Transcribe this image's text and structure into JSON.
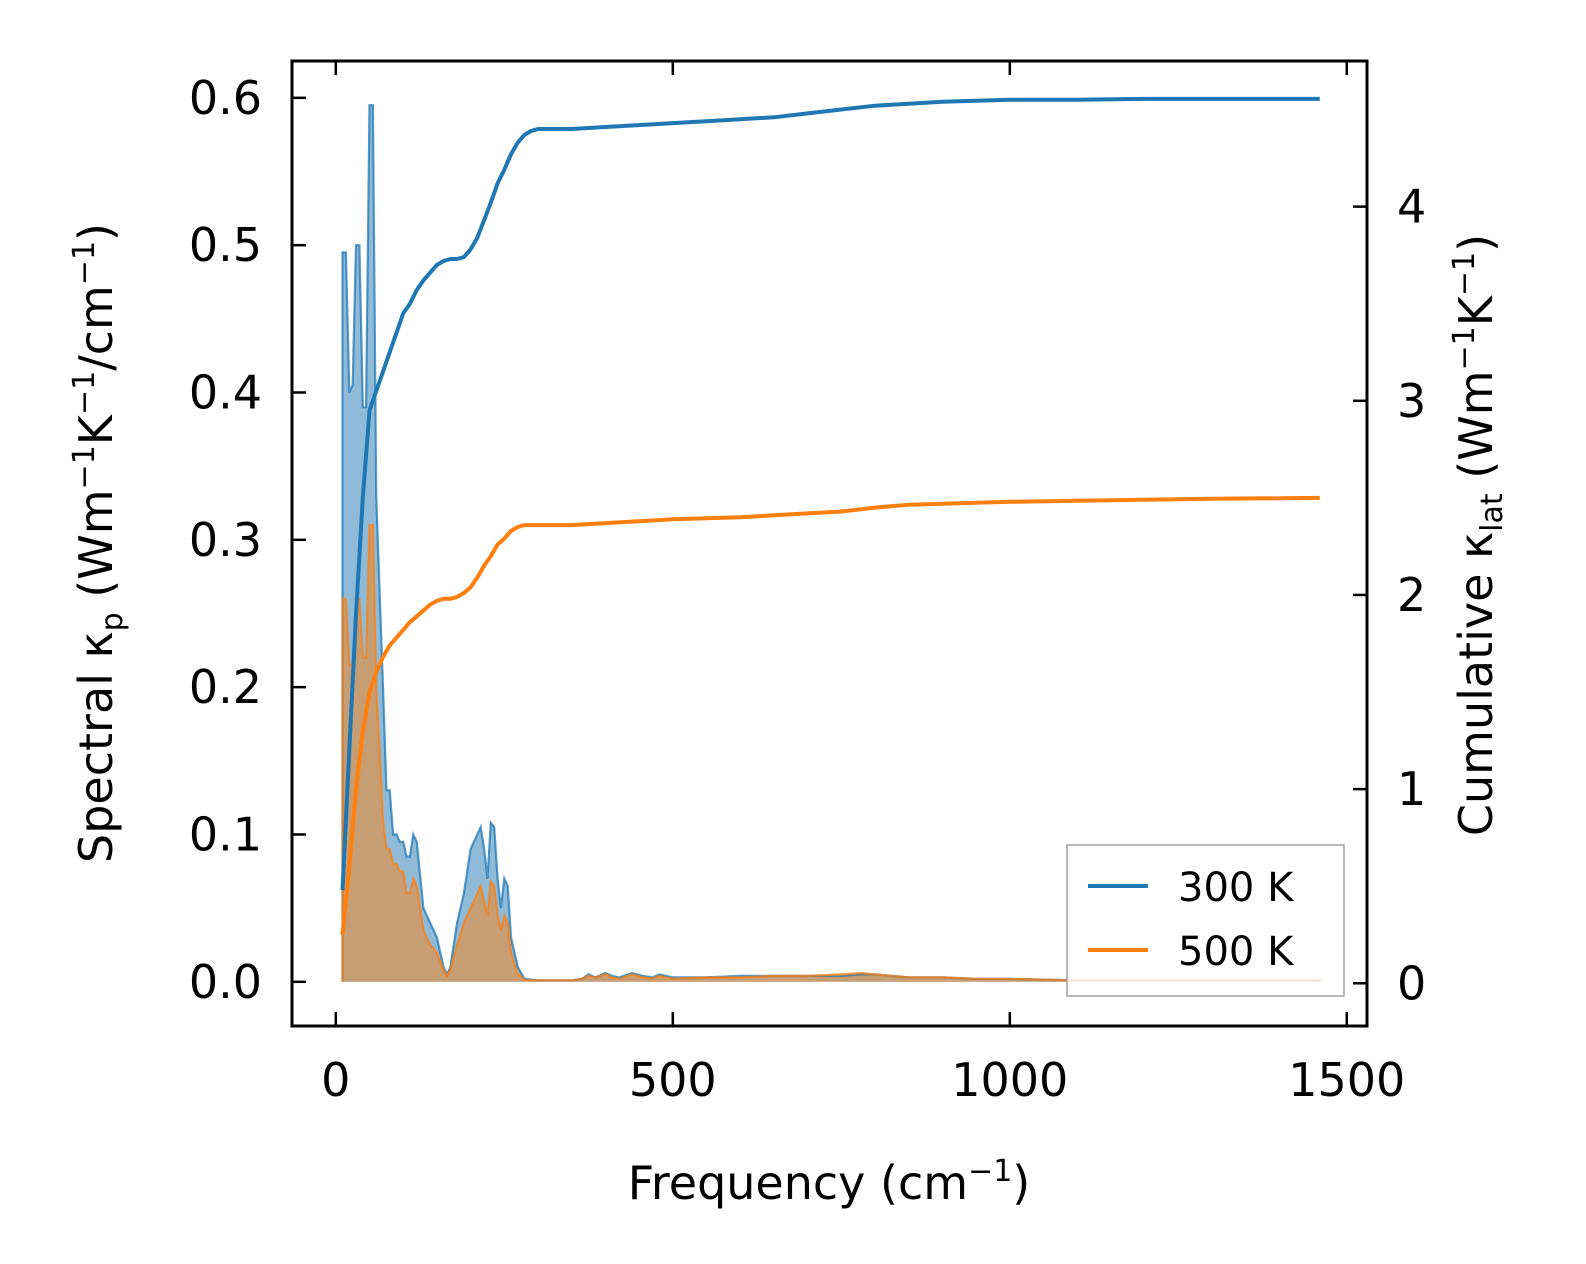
{
  "chart_data": {
    "type": "line",
    "title": "",
    "xlabel": {
      "main": "Frequency (cm",
      "sup": "−1",
      "end": ")"
    },
    "ylabel_left": {
      "a": "Spectral κ",
      "sub": "p",
      "b": " (Wm",
      "sup1": "−1",
      "c": "K",
      "sup2": "−1",
      "d": "/cm",
      "sup3": "−1",
      "e": ")"
    },
    "ylabel_right": {
      "a": "Cumulative κ",
      "sub": "lat",
      "b": " (Wm",
      "sup1": "−1",
      "c": "K",
      "sup2": "−1",
      "d": ")"
    },
    "xlim": [
      -65,
      1530
    ],
    "ylim_left": [
      -0.03,
      0.625
    ],
    "ylim_right": [
      -0.22,
      4.75
    ],
    "x_ticks": [
      0,
      500,
      1000,
      1500
    ],
    "x_tick_labels": [
      "0",
      "500",
      "1000",
      "1500"
    ],
    "y_left_ticks": [
      0.0,
      0.1,
      0.2,
      0.3,
      0.4,
      0.5,
      0.6
    ],
    "y_left_tick_labels": [
      "0.0",
      "0.1",
      "0.2",
      "0.3",
      "0.4",
      "0.5",
      "0.6"
    ],
    "y_right_ticks": [
      0,
      1,
      2,
      3,
      4
    ],
    "y_right_tick_labels": [
      "0",
      "1",
      "2",
      "3",
      "4"
    ],
    "legend_position": "lower-right",
    "series": [
      {
        "name": "300 K",
        "color": "#1f77b4",
        "spectral": [
          [
            10,
            0
          ],
          [
            10,
            0.495
          ],
          [
            15,
            0.495
          ],
          [
            20,
            0.4
          ],
          [
            25,
            0.405
          ],
          [
            30,
            0.5
          ],
          [
            35,
            0.5
          ],
          [
            40,
            0.39
          ],
          [
            45,
            0.39
          ],
          [
            50,
            0.595
          ],
          [
            55,
            0.595
          ],
          [
            60,
            0.33
          ],
          [
            70,
            0.2
          ],
          [
            75,
            0.13
          ],
          [
            80,
            0.13
          ],
          [
            85,
            0.1
          ],
          [
            90,
            0.1
          ],
          [
            95,
            0.095
          ],
          [
            100,
            0.095
          ],
          [
            105,
            0.085
          ],
          [
            110,
            0.085
          ],
          [
            115,
            0.1
          ],
          [
            120,
            0.095
          ],
          [
            130,
            0.05
          ],
          [
            140,
            0.04
          ],
          [
            150,
            0.03
          ],
          [
            160,
            0.01
          ],
          [
            165,
            0.005
          ],
          [
            170,
            0.01
          ],
          [
            180,
            0.04
          ],
          [
            190,
            0.06
          ],
          [
            200,
            0.09
          ],
          [
            210,
            0.1
          ],
          [
            215,
            0.105
          ],
          [
            220,
            0.09
          ],
          [
            225,
            0.07
          ],
          [
            230,
            0.108
          ],
          [
            235,
            0.105
          ],
          [
            240,
            0.07
          ],
          [
            245,
            0.05
          ],
          [
            250,
            0.07
          ],
          [
            255,
            0.065
          ],
          [
            260,
            0.03
          ],
          [
            265,
            0.02
          ],
          [
            270,
            0.01
          ],
          [
            280,
            0.002
          ],
          [
            300,
            0.001
          ],
          [
            350,
            0.001
          ],
          [
            365,
            0.002
          ],
          [
            375,
            0.005
          ],
          [
            385,
            0.003
          ],
          [
            400,
            0.006
          ],
          [
            410,
            0.004
          ],
          [
            420,
            0.003
          ],
          [
            440,
            0.006
          ],
          [
            455,
            0.004
          ],
          [
            470,
            0.003
          ],
          [
            480,
            0.005
          ],
          [
            500,
            0.003
          ],
          [
            550,
            0.003
          ],
          [
            600,
            0.004
          ],
          [
            650,
            0.004
          ],
          [
            700,
            0.004
          ],
          [
            750,
            0.004
          ],
          [
            780,
            0.005
          ],
          [
            800,
            0.005
          ],
          [
            850,
            0.003
          ],
          [
            900,
            0.003
          ],
          [
            950,
            0.002
          ],
          [
            1000,
            0.002
          ],
          [
            1100,
            0.001
          ],
          [
            1200,
            0.001
          ],
          [
            1300,
            0.001
          ],
          [
            1460,
            0.001
          ],
          [
            1460,
            0
          ]
        ],
        "cumulative": [
          [
            10,
            0.48
          ],
          [
            20,
            1.2
          ],
          [
            30,
            1.9
          ],
          [
            40,
            2.5
          ],
          [
            50,
            2.95
          ],
          [
            60,
            3.05
          ],
          [
            70,
            3.15
          ],
          [
            80,
            3.25
          ],
          [
            90,
            3.35
          ],
          [
            100,
            3.45
          ],
          [
            110,
            3.5
          ],
          [
            120,
            3.57
          ],
          [
            130,
            3.62
          ],
          [
            140,
            3.66
          ],
          [
            150,
            3.7
          ],
          [
            160,
            3.72
          ],
          [
            170,
            3.73
          ],
          [
            180,
            3.73
          ],
          [
            190,
            3.74
          ],
          [
            200,
            3.78
          ],
          [
            210,
            3.84
          ],
          [
            220,
            3.93
          ],
          [
            230,
            4.02
          ],
          [
            240,
            4.12
          ],
          [
            250,
            4.19
          ],
          [
            260,
            4.27
          ],
          [
            270,
            4.33
          ],
          [
            280,
            4.37
          ],
          [
            290,
            4.39
          ],
          [
            300,
            4.4
          ],
          [
            350,
            4.4
          ],
          [
            400,
            4.41
          ],
          [
            450,
            4.42
          ],
          [
            500,
            4.43
          ],
          [
            550,
            4.44
          ],
          [
            600,
            4.45
          ],
          [
            650,
            4.46
          ],
          [
            700,
            4.48
          ],
          [
            750,
            4.5
          ],
          [
            800,
            4.52
          ],
          [
            850,
            4.53
          ],
          [
            900,
            4.54
          ],
          [
            1000,
            4.55
          ],
          [
            1100,
            4.55
          ],
          [
            1200,
            4.555
          ],
          [
            1300,
            4.555
          ],
          [
            1460,
            4.555
          ]
        ]
      },
      {
        "name": "500 K",
        "color": "#ff7f0e",
        "spectral": [
          [
            10,
            0
          ],
          [
            10,
            0.26
          ],
          [
            15,
            0.26
          ],
          [
            20,
            0.215
          ],
          [
            25,
            0.215
          ],
          [
            30,
            0.26
          ],
          [
            35,
            0.26
          ],
          [
            40,
            0.22
          ],
          [
            45,
            0.22
          ],
          [
            50,
            0.31
          ],
          [
            55,
            0.31
          ],
          [
            60,
            0.2
          ],
          [
            70,
            0.11
          ],
          [
            75,
            0.09
          ],
          [
            80,
            0.09
          ],
          [
            85,
            0.08
          ],
          [
            90,
            0.08
          ],
          [
            95,
            0.075
          ],
          [
            100,
            0.075
          ],
          [
            105,
            0.06
          ],
          [
            110,
            0.06
          ],
          [
            115,
            0.07
          ],
          [
            120,
            0.065
          ],
          [
            130,
            0.035
          ],
          [
            140,
            0.025
          ],
          [
            150,
            0.02
          ],
          [
            160,
            0.008
          ],
          [
            165,
            0.004
          ],
          [
            170,
            0.008
          ],
          [
            180,
            0.025
          ],
          [
            190,
            0.04
          ],
          [
            200,
            0.05
          ],
          [
            210,
            0.06
          ],
          [
            215,
            0.065
          ],
          [
            220,
            0.055
          ],
          [
            225,
            0.045
          ],
          [
            230,
            0.068
          ],
          [
            235,
            0.065
          ],
          [
            240,
            0.045
          ],
          [
            245,
            0.035
          ],
          [
            250,
            0.045
          ],
          [
            255,
            0.04
          ],
          [
            260,
            0.02
          ],
          [
            265,
            0.012
          ],
          [
            270,
            0.006
          ],
          [
            280,
            0.001
          ],
          [
            300,
            0.001
          ],
          [
            350,
            0.001
          ],
          [
            365,
            0.002
          ],
          [
            375,
            0.004
          ],
          [
            385,
            0.003
          ],
          [
            400,
            0.005
          ],
          [
            410,
            0.003
          ],
          [
            420,
            0.002
          ],
          [
            440,
            0.005
          ],
          [
            455,
            0.003
          ],
          [
            470,
            0.002
          ],
          [
            480,
            0.004
          ],
          [
            500,
            0.002
          ],
          [
            550,
            0.003
          ],
          [
            600,
            0.003
          ],
          [
            650,
            0.004
          ],
          [
            700,
            0.004
          ],
          [
            750,
            0.005
          ],
          [
            780,
            0.006
          ],
          [
            800,
            0.005
          ],
          [
            850,
            0.003
          ],
          [
            900,
            0.003
          ],
          [
            950,
            0.002
          ],
          [
            1000,
            0.002
          ],
          [
            1100,
            0.001
          ],
          [
            1200,
            0.001
          ],
          [
            1300,
            0.001
          ],
          [
            1460,
            0.001
          ],
          [
            1460,
            0
          ]
        ],
        "cumulative": [
          [
            10,
            0.25
          ],
          [
            20,
            0.6
          ],
          [
            30,
            1.0
          ],
          [
            40,
            1.3
          ],
          [
            50,
            1.5
          ],
          [
            60,
            1.6
          ],
          [
            70,
            1.68
          ],
          [
            80,
            1.74
          ],
          [
            90,
            1.78
          ],
          [
            100,
            1.82
          ],
          [
            110,
            1.86
          ],
          [
            120,
            1.89
          ],
          [
            130,
            1.92
          ],
          [
            140,
            1.95
          ],
          [
            150,
            1.97
          ],
          [
            160,
            1.98
          ],
          [
            170,
            1.98
          ],
          [
            180,
            1.99
          ],
          [
            190,
            2.01
          ],
          [
            200,
            2.04
          ],
          [
            210,
            2.09
          ],
          [
            220,
            2.15
          ],
          [
            230,
            2.2
          ],
          [
            240,
            2.26
          ],
          [
            250,
            2.29
          ],
          [
            260,
            2.33
          ],
          [
            270,
            2.35
          ],
          [
            280,
            2.36
          ],
          [
            300,
            2.36
          ],
          [
            350,
            2.36
          ],
          [
            400,
            2.37
          ],
          [
            450,
            2.38
          ],
          [
            500,
            2.39
          ],
          [
            550,
            2.395
          ],
          [
            600,
            2.4
          ],
          [
            650,
            2.41
          ],
          [
            700,
            2.42
          ],
          [
            750,
            2.43
          ],
          [
            800,
            2.45
          ],
          [
            850,
            2.465
          ],
          [
            900,
            2.47
          ],
          [
            950,
            2.475
          ],
          [
            1000,
            2.48
          ],
          [
            1100,
            2.485
          ],
          [
            1200,
            2.49
          ],
          [
            1300,
            2.495
          ],
          [
            1460,
            2.5
          ]
        ]
      }
    ]
  }
}
